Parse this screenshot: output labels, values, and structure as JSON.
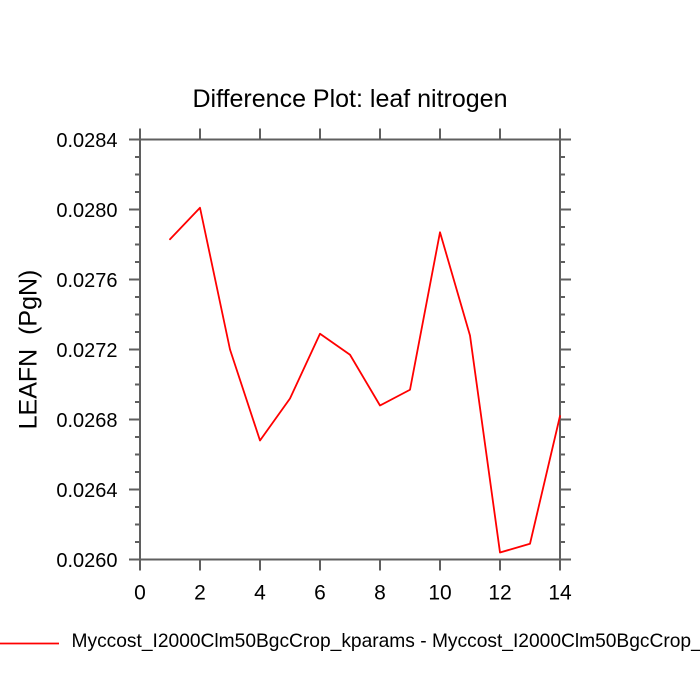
{
  "chart_data": {
    "type": "line",
    "title": "Difference Plot: leaf nitrogen",
    "xlabel": "",
    "ylabel": "LEAFN  (PgN)",
    "x": [
      1,
      2,
      3,
      4,
      5,
      6,
      7,
      8,
      9,
      10,
      11,
      12,
      13,
      14
    ],
    "series": [
      {
        "name": "Myccost_I2000Clm50BgcCrop_kparams - Myccost_I2000Clm50BgcCrop_",
        "color": "#ff0000",
        "values": [
          0.02783,
          0.02801,
          0.0272,
          0.02668,
          0.02692,
          0.02729,
          0.02717,
          0.02688,
          0.02697,
          0.02787,
          0.02728,
          0.02604,
          0.02609,
          0.02682
        ]
      }
    ],
    "xlim": [
      0,
      14
    ],
    "ylim": [
      0.026,
      0.0284
    ],
    "xticks": [
      0,
      2,
      4,
      6,
      8,
      10,
      12,
      14
    ],
    "xtick_labels": [
      "0",
      "2",
      "4",
      "6",
      "8",
      "10",
      "12",
      "14"
    ],
    "yticks": [
      0.026,
      0.0264,
      0.0268,
      0.0272,
      0.0276,
      0.028,
      0.0284
    ],
    "ytick_labels": [
      "0.0260",
      "0.0264",
      "0.0268",
      "0.0272",
      "0.0276",
      "0.0280",
      "0.0284"
    ],
    "y_minor_tick_step": 0.0001,
    "grid": false,
    "legend_position": "bottom-left"
  },
  "colors": {
    "background": "#ffffff",
    "axis": "#5f5f5f",
    "text": "#000000",
    "line": "#ff0000"
  }
}
